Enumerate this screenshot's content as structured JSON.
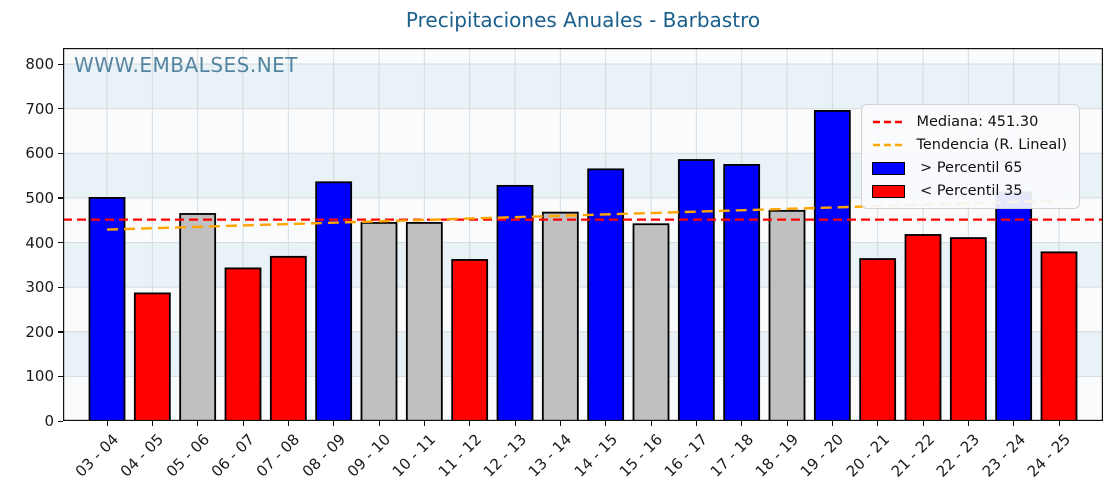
{
  "watermark": "WWW.EMBALSES.NET",
  "colors": {
    "title": "#1b608c",
    "watermark": "#3a7191",
    "band_azure": "#e9f2f7",
    "band_white": "#fafbfc",
    "gridline": "#d5dbde",
    "spine": "#111111",
    "bar_border": "#000000",
    "percentile_65": "#0000ff",
    "percentile_35": "#ff0000",
    "mid_gray": "#c0c0c0",
    "median_line": "#ff0000",
    "trend_line": "#ffa500"
  },
  "chart_data": {
    "type": "bar",
    "title": "Precipitaciones Anuales - Barbastro",
    "xlabel": "",
    "ylabel": "",
    "ylim": [
      0,
      836
    ],
    "yticks": [
      0,
      100,
      200,
      300,
      400,
      500,
      600,
      700,
      800
    ],
    "grid": true,
    "background_bands_azure": [
      [
        100,
        200
      ],
      [
        300,
        400
      ],
      [
        500,
        600
      ],
      [
        700,
        800
      ]
    ],
    "categories": [
      "03 - 04",
      "04 - 05",
      "05 - 06",
      "06 - 07",
      "07 - 08",
      "08 - 09",
      "09 - 10",
      "10 - 11",
      "11 - 12",
      "12 - 13",
      "13 - 14",
      "14 - 15",
      "15 - 16",
      "16 - 17",
      "17 - 18",
      "18 - 19",
      "19 - 20",
      "20 - 21",
      "21 - 22",
      "22 - 23",
      "23 - 24",
      "24 - 25"
    ],
    "values": [
      500,
      286,
      464,
      342,
      368,
      535,
      444,
      444,
      361,
      527,
      467,
      564,
      441,
      585,
      574,
      471,
      695,
      363,
      417,
      410,
      512,
      378
    ],
    "bar_classes": [
      "p65",
      "p35",
      "mid",
      "p35",
      "p35",
      "p65",
      "mid",
      "mid",
      "p35",
      "p65",
      "mid",
      "p65",
      "mid",
      "p65",
      "p65",
      "mid",
      "p65",
      "p35",
      "p35",
      "p35",
      "p65",
      "p35"
    ],
    "class_colors": {
      "p65": "#0000ff",
      "p35": "#ff0000",
      "mid": "#c0c0c0"
    },
    "median": 451.3,
    "trend": {
      "start_value": 429,
      "end_value": 494
    },
    "legend_position": "upper right",
    "legend": [
      {
        "label": "Mediana: 451.30",
        "type": "dashed-line",
        "color": "#ff0000"
      },
      {
        "label": "Tendencia (R. Lineal)",
        "type": "dashed-line",
        "color": "#ffa500"
      },
      {
        "label": " > Percentil 65",
        "type": "rect",
        "color": "#0000ff"
      },
      {
        "label": " < Percentil 35",
        "type": "rect",
        "color": "#ff0000"
      }
    ]
  }
}
